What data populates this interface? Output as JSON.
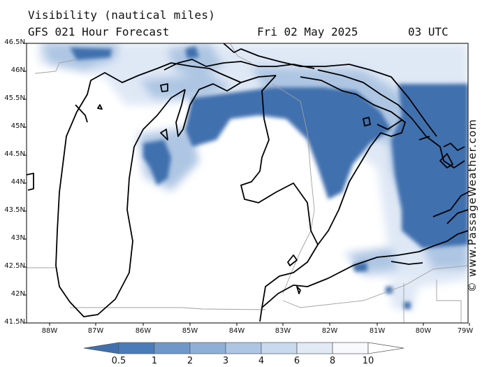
{
  "header": {
    "title": "Visibility (nautical miles)",
    "subtitle": "GFS 021 Hour Forecast",
    "date": "Fri 02 May 2025",
    "time": "03 UTC"
  },
  "axes": {
    "lat_labels": [
      "46.5N",
      "46N",
      "45.5N",
      "45N",
      "44.5N",
      "44N",
      "43.5N",
      "43N",
      "42.5N",
      "42N",
      "41.5N"
    ],
    "lon_labels": [
      "88W",
      "87W",
      "86W",
      "85W",
      "84W",
      "83W",
      "82W",
      "81W",
      "80W",
      "79W"
    ]
  },
  "credit": "© www.PassageWeather.com",
  "legend": {
    "levels": [
      "0.5",
      "1",
      "2",
      "3",
      "4",
      "6",
      "8",
      "10"
    ],
    "colors": [
      "#3f6fae",
      "#4a7cb8",
      "#6f98c9",
      "#8fb0d6",
      "#aec6e3",
      "#c9d9ee",
      "#e2eaf6",
      "#f7f9fd",
      "#ffffff"
    ]
  },
  "map": {
    "land_color": "#ffffff",
    "coast_color": "#000000",
    "border_color": "#a0a0a0",
    "fog_colors": {
      "dense": "#3f6fae",
      "mid": "#6f98c9",
      "light": "#aec6e3",
      "faint": "#dfe8f5"
    }
  }
}
